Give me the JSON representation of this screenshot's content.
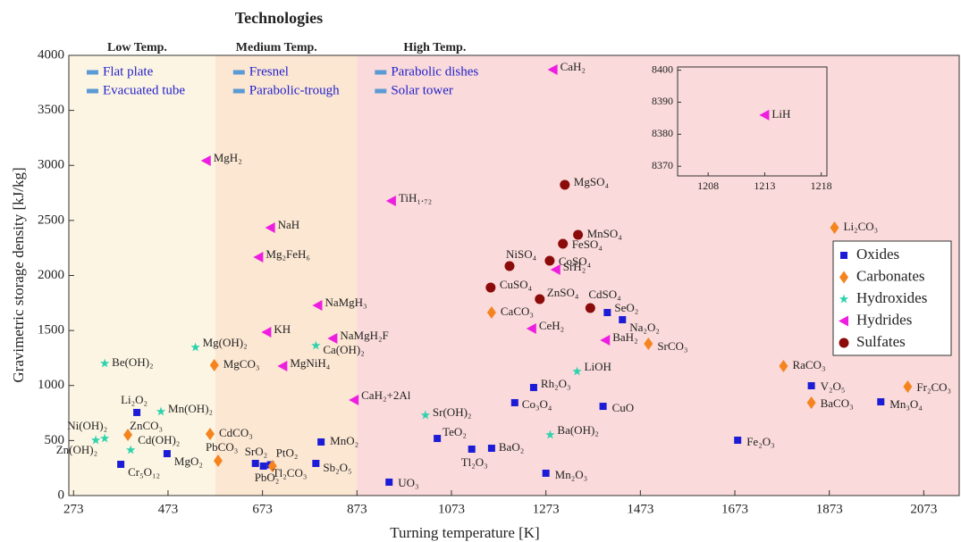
{
  "chart_data": [
    {
      "type": "scatter",
      "title": "Technologies",
      "xlabel": "Turning temperature [K]",
      "ylabel": "Gravimetric storage density [kJ/kg]",
      "xlim": [
        263,
        2148
      ],
      "ylim": [
        0,
        4000
      ],
      "xticks": [
        273,
        473,
        673,
        873,
        1073,
        1273,
        1473,
        1673,
        1873,
        2073
      ],
      "yticks": [
        0,
        500,
        1000,
        1500,
        2000,
        2500,
        3000,
        3500,
        4000
      ],
      "legend": "right",
      "tech_color": "#2222cc",
      "tech_marker_color": "#5b9bd5",
      "regions": [
        {
          "name": "Low Temp.",
          "range": [
            263,
            573
          ],
          "color": "#fdf5e3",
          "technologies": [
            "Flat plate",
            "Evacuated tube"
          ]
        },
        {
          "name": "Medium Temp.",
          "range": [
            573,
            873
          ],
          "color": "#fce7d3",
          "technologies": [
            "Fresnel",
            "Parabolic-trough"
          ]
        },
        {
          "name": "High Temp.",
          "range": [
            873,
            2148
          ],
          "color": "#fadada",
          "technologies": [
            "Parabolic dishes",
            "Solar tower"
          ]
        }
      ],
      "series": [
        {
          "name": "Oxides",
          "color": "#1c1cd6",
          "marker": "square",
          "labels": [
            "Li₂O₂",
            "Cr₅O₁₂",
            "MgO₂",
            "SrO₂",
            "PbO₂",
            "PtO₂",
            "MnO₂",
            "Sb₂O₅",
            "UO₃",
            "TeO₂",
            "Tl₂O₃",
            "BaO₂",
            "Mn₂O₃",
            "Rh₂O₃",
            "Co₃O₄",
            "CuO",
            "SeO₂",
            "Na₂O₂",
            "Fe₂O₃",
            "V₂O₅",
            "Mn₃O₄"
          ],
          "x": [
            407,
            373,
            471,
            658,
            675,
            690,
            797,
            786,
            941,
            1043,
            1116,
            1158,
            1273,
            1247,
            1207,
            1394,
            1403,
            1435,
            1679,
            1835,
            1982
          ],
          "values": [
            755,
            284,
            381,
            292,
            268,
            280,
            487,
            292,
            122,
            519,
            422,
            430,
            203,
            982,
            844,
            811,
            1663,
            1598,
            503,
            998,
            852
          ]
        },
        {
          "name": "Carbonates",
          "color": "#f5841f",
          "marker": "diamond",
          "labels": [
            "ZnCO₃",
            "CdCO₃",
            "PbCO₃",
            "Tl₂CO₃",
            "MgCO₃",
            "CaCO₃",
            "SrCO₃",
            "RaCO₃",
            "BaCO₃",
            "Li₂CO₃",
            "Fr₂CO₃"
          ],
          "x": [
            388,
            562,
            579,
            694,
            571,
            1158,
            1490,
            1776,
            1835,
            1884,
            2039
          ],
          "values": [
            552,
            560,
            316,
            268,
            1185,
            1663,
            1379,
            1176,
            844,
            2434,
            990
          ]
        },
        {
          "name": "Hydroxides",
          "color": "#2fd2ae",
          "marker": "star",
          "labels": [
            "Be(OH)₂",
            "Mn(OH)₂",
            "Ni(OH)₂",
            "Zn(OH)₂",
            "Cd(OH)₂",
            "Mg(OH)₂",
            "Ca(OH)₂",
            "Sr(OH)₂",
            "Ba(OH)₂",
            "LiOH"
          ],
          "x": [
            339,
            458,
            339,
            320,
            394,
            531,
            786,
            1018,
            1282,
            1339
          ],
          "values": [
            1201,
            763,
            519,
            503,
            414,
            1347,
            1363,
            730,
            552,
            1128
          ]
        },
        {
          "name": "Hydrides",
          "color": "#ee1ee0",
          "marker": "triangle-left",
          "labels": [
            "MgH₂",
            "NaH",
            "Mg₂FeH₆",
            "KH",
            "MgNiH₄",
            "NaMgH₃",
            "NaMgH₂F",
            "CaH₂+2Al",
            "TiH₁.₇₂",
            "CaH₂",
            "SrH₂",
            "CeH₂",
            "BaH₂"
          ],
          "x": [
            554,
            690,
            665,
            682,
            716,
            790,
            822,
            867,
            946,
            1288,
            1294,
            1243,
            1399
          ],
          "values": [
            3043,
            2434,
            2166,
            1485,
            1176,
            1728,
            1428,
            868,
            2677,
            3870,
            2053,
            1517,
            1412
          ]
        },
        {
          "name": "Sulfates",
          "color": "#8b0a0a",
          "marker": "circle",
          "labels": [
            "MgSO₄",
            "MnSO₄",
            "FeSO₄",
            "CoSO₄",
            "NiSO₄",
            "CuSO₄",
            "ZnSO₄",
            "CdSO₄"
          ],
          "x": [
            1313,
            1341,
            1309,
            1281,
            1196,
            1156,
            1260,
            1367
          ],
          "values": [
            2824,
            2369,
            2288,
            2134,
            2085,
            1890,
            1785,
            1704
          ]
        }
      ]
    },
    {
      "type": "inset",
      "xlim": [
        1205.3,
        1218.5
      ],
      "ylim": [
        8367,
        8401
      ],
      "xticks": [
        1208,
        1213,
        1218
      ],
      "yticks": [
        8370,
        8380,
        8390,
        8400
      ],
      "series": [
        {
          "color": "#ee1ee0",
          "marker": "triangle-left",
          "labels": [
            "LiH"
          ],
          "x": [
            1213
          ],
          "values": [
            8386
          ]
        }
      ]
    }
  ]
}
